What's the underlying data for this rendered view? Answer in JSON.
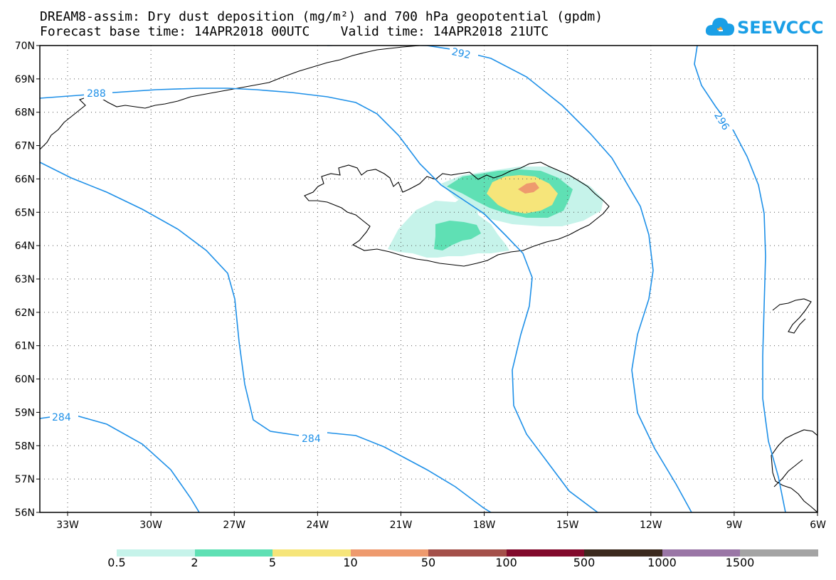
{
  "header": {
    "title_line1": "DREAM8-assim: Dry dust deposition (mg/m²) and 700 hPa geopotential (gpdm)",
    "title_line2": "Forecast base time: 14APR2018 00UTC    Valid time: 14APR2018 21UTC"
  },
  "logo": {
    "text": "SEEVCCC",
    "icon": "cloud-icon",
    "color": "#1a9fe6"
  },
  "map": {
    "lon_range": [
      -34,
      -6
    ],
    "lat_range": [
      56,
      70
    ],
    "lat_labels": [
      "70N",
      "69N",
      "68N",
      "67N",
      "66N",
      "65N",
      "64N",
      "63N",
      "62N",
      "61N",
      "60N",
      "59N",
      "58N",
      "57N",
      "56N"
    ],
    "lon_labels": [
      "33W",
      "30W",
      "27W",
      "24W",
      "21W",
      "18W",
      "15W",
      "12W",
      "9W",
      "6W"
    ],
    "grid_style": "dotted",
    "contour_color": "#1e90e8",
    "contour_labels": [
      "288",
      "292",
      "296",
      "284",
      "284"
    ]
  },
  "colorbar": {
    "labels": [
      "0.5",
      "2",
      "5",
      "10",
      "50",
      "100",
      "500",
      "1000",
      "1500"
    ],
    "colors": [
      "#c6f3ea",
      "#5fe0b4",
      "#f6e57a",
      "#ee9a6e",
      "#a4504a",
      "#820a2c",
      "#3c2a1e",
      "#9a76a6",
      "#a4a4a4"
    ]
  }
}
